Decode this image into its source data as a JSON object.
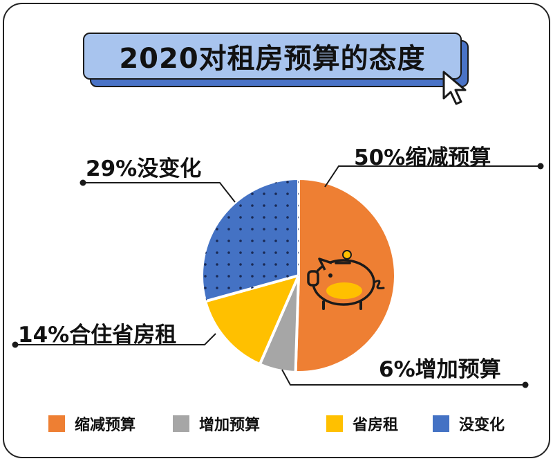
{
  "title": "2020对租房预算的态度",
  "chart_data": {
    "type": "pie",
    "title": "2020对租房预算的态度",
    "slices": [
      {
        "label": "缩减预算",
        "value": 50,
        "color": "#ee7f33",
        "callout": "50%缩减预算",
        "highlight": "#f8c9a9"
      },
      {
        "label": "增加预算",
        "value": 6,
        "color": "#a6a6a6",
        "callout": "6%增加预算",
        "highlight": "#dcdcdc"
      },
      {
        "label": "省房租",
        "value": 14,
        "color": "#ffc000",
        "callout": "14%合住省房租",
        "highlight": "#ffe38a"
      },
      {
        "label": "没变化",
        "value": 29,
        "color": "#4472c4",
        "callout": "29%没变化",
        "highlight": "#b4c7ea"
      }
    ],
    "legend_placement": "bottom"
  }
}
